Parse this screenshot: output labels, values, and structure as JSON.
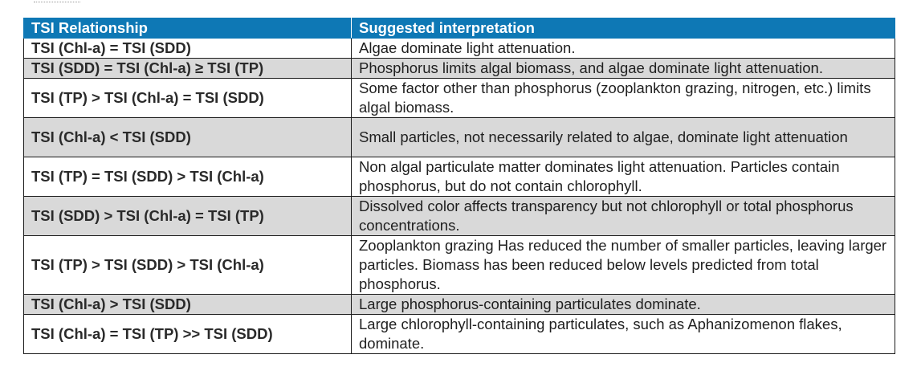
{
  "table": {
    "headers": {
      "relationship": "TSI Relationship",
      "interpretation": "Suggested interpretation"
    },
    "rows": [
      {
        "relationship": "TSI (Chl-a) = TSI (SDD)",
        "interpretation": "Algae dominate light attenuation."
      },
      {
        "relationship": "TSI (SDD) = TSI (Chl-a) ≥ TSI (TP)",
        "interpretation": "Phosphorus limits algal biomass, and algae dominate light attenuation."
      },
      {
        "relationship": "TSI (TP) > TSI (Chl-a) = TSI (SDD)",
        "interpretation": "Some factor other than phosphorus (zooplankton grazing, nitrogen, etc.) limits algal biomass."
      },
      {
        "relationship": "TSI (Chl-a) < TSI (SDD)",
        "interpretation": "Small particles, not necessarily related to algae, dominate light attenuation"
      },
      {
        "relationship": "TSI (TP) = TSI (SDD) > TSI (Chl-a)",
        "interpretation": "Non algal particulate matter dominates light attenuation. Particles contain phosphorus, but do not contain chlorophyll."
      },
      {
        "relationship": "TSI (SDD) > TSI (Chl-a) = TSI (TP)",
        "interpretation": "Dissolved color affects transparency but not chlorophyll or total phosphorus concentrations."
      },
      {
        "relationship": "TSI (TP) > TSI (SDD) > TSI (Chl-a)",
        "interpretation": "Zooplankton grazing Has reduced the number of smaller particles, leaving larger particles. Biomass has been reduced below levels predicted from total phosphorus."
      },
      {
        "relationship": "TSI (Chl-a) > TSI (SDD)",
        "interpretation": "Large phosphorus-containing particulates dominate."
      },
      {
        "relationship": "TSI (Chl-a) = TSI (TP) >> TSI (SDD)",
        "interpretation": "Large chlorophyll-containing particulates, such as Aphanizomenon flakes, dominate."
      }
    ]
  },
  "colors": {
    "header_background": "#0e78b5",
    "header_text": "#ffffff",
    "shaded_row": "#d9d9d9",
    "border": "#1a1a1a"
  }
}
